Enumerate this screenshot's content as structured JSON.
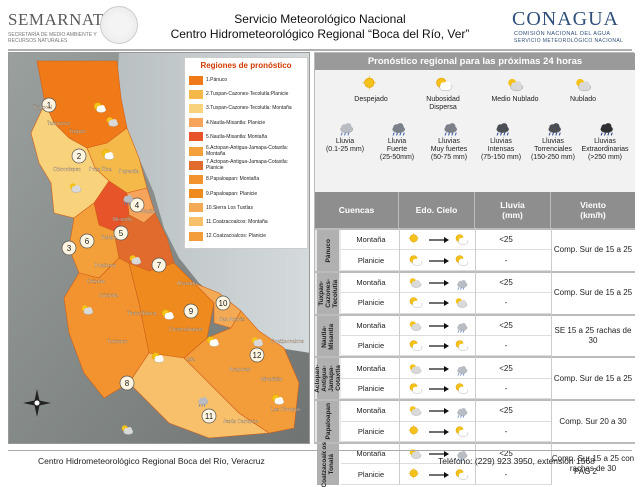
{
  "header": {
    "left_logo": "SEMARNAT",
    "left_logo_sub": "SECRETARÍA DE MEDIO AMBIENTE Y RECURSOS NATURALES",
    "title_line1": "Servicio Meteorológico Nacional",
    "title_line2": "Centro Hidrometeorológico Regional “Boca del Río, Ver”",
    "right_logo": "CONAGUA",
    "right_logo_sub1": "COMISIÓN NACIONAL DEL AGUA",
    "right_logo_sub2": "SERVICIO METEOROLÓGICO NACIONAL"
  },
  "map": {
    "legend_title": "Regiones de pronóstico",
    "legend": [
      {
        "label": "1.Pánuco",
        "color": "#f07a18"
      },
      {
        "label": "2.Tuxpan-Cazones-Tecolutla:Planicie",
        "color": "#f5b94a"
      },
      {
        "label": "3.Tuxpan-Cazones-Tecolutla: Montaña",
        "color": "#f9d27c"
      },
      {
        "label": "4.Nautla-Misantla: Planicie",
        "color": "#f6a35b"
      },
      {
        "label": "5.Nautla-Misantla: Montaña",
        "color": "#e8542a"
      },
      {
        "label": "6.Actopan-Antigua-Jamapa-Cotaxtla: Montaña",
        "color": "#f3a03a"
      },
      {
        "label": "7.Actopan-Antigua-Jamapa-Cotaxtla: Planicie",
        "color": "#e06b2c"
      },
      {
        "label": "8.Papaloapan: Montaña",
        "color": "#f2932f"
      },
      {
        "label": "9.Papaloapan: Planicie",
        "color": "#ee8a1e"
      },
      {
        "label": "10.Sierra Los Tuxtlas",
        "color": "#f4aa55"
      },
      {
        "label": "11.Coatzacoalcos: Montaña",
        "color": "#f8c06a"
      },
      {
        "label": "12.Coatzacoalcos: Planicie",
        "color": "#f39c3a"
      }
    ],
    "region_numbers": [
      "1",
      "2",
      "3",
      "4",
      "5",
      "6",
      "7",
      "8",
      "9",
      "10",
      "11",
      "12"
    ],
    "places": [
      "Tuxpan",
      "Poza Rica",
      "Papantla",
      "Nautla",
      "Misantla",
      "Xalapa",
      "Orizaba",
      "Córdoba",
      "Alvarado",
      "Cosamaloapan",
      "Tierra Blanca",
      "Acayucan",
      "Minatitlán",
      "Coatzacoalcos",
      "Las Choapas",
      "Tantoyuca",
      "Tempoal",
      "Chicontepec",
      "Huatusco",
      "Tuxtepec",
      "San Andrés",
      "Jesús Carranza",
      "Isla"
    ]
  },
  "forecast": {
    "title": "Pronóstico regional para las próximas 24 horas",
    "sky_legend_top": [
      "Despejado",
      "Nubosidad  Dispersa",
      "Medio  Nublado",
      "Nublado"
    ],
    "sky_legend_bottom": [
      {
        "line1": "Lluvia",
        "line2": "(0.1-25 mm)"
      },
      {
        "line1": "Lluvia",
        "line2": "Fuerte",
        "line3": "(25-50mm)"
      },
      {
        "line1": "Lluvias",
        "line2": "Muy fuertes",
        "line3": "(50-75 mm)"
      },
      {
        "line1": "Lluvias",
        "line2": "Intensas",
        "line3": "(75-150 mm)"
      },
      {
        "line1": "Lluvias",
        "line2": "Torrenciales",
        "line3": "(150-250 mm)"
      },
      {
        "line1": "Lluvias",
        "line2": "Extraordinarias",
        "line3": "(>250 mm)"
      }
    ],
    "columns": {
      "cuencas": "Cuencas",
      "cielo": "Edo. Cielo",
      "lluvia": "Lluvia",
      "lluvia_unit": "(mm)",
      "viento": "Viento",
      "viento_unit": "(km/h)"
    },
    "basins": [
      {
        "name": "Pánuco",
        "rows": [
          {
            "sub": "Montaña",
            "rain": "<25",
            "from": "sun",
            "to": "partly"
          },
          {
            "sub": "Planicie",
            "rain": "-",
            "from": "partly",
            "to": "partly"
          }
        ],
        "wind": "Comp. Sur de 15 a 25"
      },
      {
        "name": "Tuxpan-Cazones-Tecolutla",
        "rows": [
          {
            "sub": "Montaña",
            "rain": "<25",
            "from": "cloudy",
            "to": "rain"
          },
          {
            "sub": "Planicie",
            "rain": "-",
            "from": "partly",
            "to": "cloudy"
          }
        ],
        "wind": "Comp. Sur de 15 a 25"
      },
      {
        "name": "Nautla-Misantla",
        "rows": [
          {
            "sub": "Montaña",
            "rain": "<25",
            "from": "cloudy",
            "to": "rain"
          },
          {
            "sub": "Planicie",
            "rain": "-",
            "from": "partly",
            "to": "partly"
          }
        ],
        "wind": "SE 15 a 25 rachas de 30"
      },
      {
        "name": "Actopan-Antigua-Jamapa-Cotaxtla",
        "rows": [
          {
            "sub": "Montaña",
            "rain": "<25",
            "from": "cloudy",
            "to": "rain"
          },
          {
            "sub": "Planicie",
            "rain": "-",
            "from": "partly",
            "to": "partly"
          }
        ],
        "wind": "Comp. Sur de 15 a 25"
      },
      {
        "name": "Papaloapan",
        "rows": [
          {
            "sub": "Montaña",
            "rain": "<25",
            "from": "cloudy",
            "to": "rain"
          },
          {
            "sub": "Planicie",
            "rain": "-",
            "from": "sun",
            "to": "partly"
          }
        ],
        "wind": "Comp. Sur 20 a 30"
      },
      {
        "name": "Coatzacoalcos Tonalá",
        "rows": [
          {
            "sub": "Montaña",
            "rain": "<25",
            "from": "cloudy",
            "to": "rain"
          },
          {
            "sub": "Planicie",
            "rain": "-",
            "from": "sun",
            "to": "partly"
          }
        ],
        "wind": "Comp. Sur 15 a 25 con rachas de 30"
      }
    ]
  },
  "footer": {
    "left": "Centro Hidrometeorológico Regional Boca del Río, Veracruz",
    "right": "Teléfono: (229) 923 3950, extensión 1568",
    "page": "PAG 2"
  },
  "colors": {
    "accent": "#2e4f7a",
    "panel_header": "#9a9a9a",
    "band_label": "#b0b0b0",
    "sun": "#f5c21b",
    "cloud": "#d9d9d9",
    "rain_cloud": "#7c8088"
  },
  "icons": [
    "sun-icon",
    "partly-cloudy-icon",
    "cloudy-icon",
    "rain-icon",
    "heavy-rain-icon",
    "arrow-right-icon",
    "compass-icon"
  ]
}
